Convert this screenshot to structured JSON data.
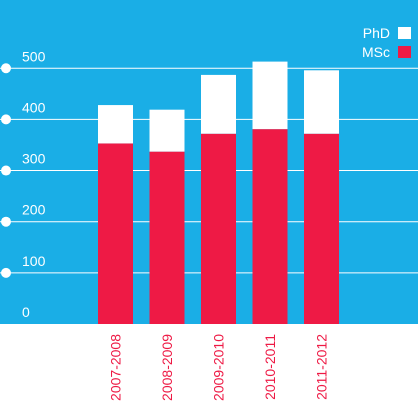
{
  "chart_data": {
    "type": "bar",
    "stacked": true,
    "categories": [
      "2007-2008",
      "2008-2009",
      "2009-2010",
      "2010-2011",
      "2011-2012"
    ],
    "series": [
      {
        "name": "MSc",
        "values": [
          353,
          337,
          372,
          381,
          372
        ]
      },
      {
        "name": "PhD",
        "values": [
          75,
          82,
          115,
          132,
          124
        ]
      }
    ],
    "y_ticks": [
      "0",
      "100",
      "200",
      "300",
      "400",
      "500"
    ],
    "ylim": [
      0,
      570
    ],
    "legend": [
      "PhD",
      "MSc"
    ],
    "legend_position": "top-right",
    "grid": true,
    "colors": {
      "background": "#1aaee6",
      "msc": "#ee1a45",
      "phd": "#ffffff",
      "grid": "#ffffff",
      "text": "#ffffff",
      "category_text": "#ee1a45"
    }
  }
}
